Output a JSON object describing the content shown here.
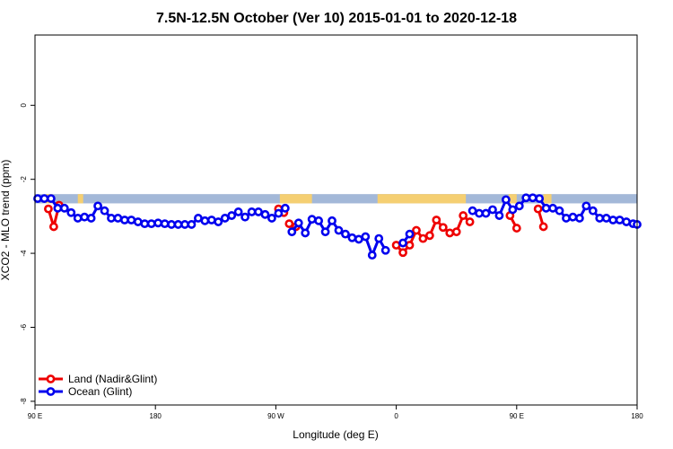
{
  "chart_data": {
    "type": "line",
    "title": "7.5N-12.5N October (Ver 10)   2015-01-01 to 2020-12-18",
    "xlabel": "Longitude (deg E)",
    "ylabel": "XCO2 - MLO trend (ppm)",
    "xlim": [
      90,
      540
    ],
    "ylim": [
      -8.1,
      1.9
    ],
    "x_ticks": [
      {
        "value": 90,
        "label": "90 E"
      },
      {
        "value": 180,
        "label": "180"
      },
      {
        "value": 270,
        "label": "90 W"
      },
      {
        "value": 360,
        "label": "0"
      },
      {
        "value": 450,
        "label": "90 E"
      },
      {
        "value": 540,
        "label": "180"
      }
    ],
    "y_ticks": [
      {
        "value": 0,
        "label": "0"
      },
      {
        "value": -2,
        "label": "-2"
      },
      {
        "value": -4,
        "label": "-4"
      },
      {
        "value": -6,
        "label": "-6"
      },
      {
        "value": -8,
        "label": "-8"
      }
    ],
    "legend_position": "bottom-left",
    "land_ocean_band": {
      "y_top": -2.4,
      "y_bottom": -2.65,
      "ocean_color": "#a3b8d8",
      "land_color": "#f5cf72",
      "land_segments": [
        [
          98,
          103
        ],
        [
          122,
          126
        ],
        [
          273,
          297
        ],
        [
          346,
          412
        ],
        [
          444,
          450
        ],
        [
          470,
          476
        ]
      ]
    },
    "series": [
      {
        "name": "Land (Nadir&Glint)",
        "color": "#ee0000",
        "segments": [
          {
            "x": [
              100,
              104,
              108
            ],
            "y": [
              -2.8,
              -3.28,
              -2.7
            ]
          },
          {
            "x": [
              272,
              276
            ],
            "y": [
              -2.8,
              -2.9
            ]
          },
          {
            "x": [
              280,
              285
            ],
            "y": [
              -3.2,
              -3.28
            ]
          },
          {
            "x": [
              360,
              365,
              370,
              375,
              380,
              385,
              390,
              395,
              400,
              405,
              410,
              415
            ],
            "y": [
              -3.78,
              -3.98,
              -3.78,
              -3.38,
              -3.6,
              -3.52,
              -3.1,
              -3.3,
              -3.45,
              -3.42,
              -2.98,
              -3.15
            ]
          },
          {
            "x": [
              445,
              450
            ],
            "y": [
              -2.98,
              -3.32
            ]
          },
          {
            "x": [
              466,
              470
            ],
            "y": [
              -2.8,
              -3.28
            ]
          }
        ]
      },
      {
        "name": "Ocean (Glint)",
        "color": "#0000ee",
        "segments": [
          {
            "x": [
              92,
              97,
              102,
              107,
              112,
              117,
              122,
              127,
              132,
              137,
              142,
              147,
              152,
              157,
              162,
              167,
              172,
              177,
              182,
              187,
              192,
              197,
              202,
              207,
              212,
              217,
              222,
              227,
              232,
              237,
              242,
              247,
              252,
              257,
              262,
              267,
              272,
              277
            ],
            "y": [
              -2.52,
              -2.52,
              -2.52,
              -2.78,
              -2.78,
              -2.9,
              -3.05,
              -3.02,
              -3.05,
              -2.72,
              -2.85,
              -3.05,
              -3.05,
              -3.1,
              -3.1,
              -3.15,
              -3.2,
              -3.2,
              -3.18,
              -3.2,
              -3.22,
              -3.22,
              -3.22,
              -3.22,
              -3.05,
              -3.12,
              -3.1,
              -3.15,
              -3.05,
              -2.98,
              -2.88,
              -3.02,
              -2.88,
              -2.88,
              -2.95,
              -3.05,
              -2.92,
              -2.78
            ]
          },
          {
            "x": [
              282,
              287,
              292,
              297,
              302,
              307,
              312,
              317,
              322,
              327,
              332,
              337,
              342,
              347,
              352
            ],
            "y": [
              -3.42,
              -3.18,
              -3.45,
              -3.08,
              -3.12,
              -3.42,
              -3.12,
              -3.38,
              -3.48,
              -3.58,
              -3.62,
              -3.55,
              -4.05,
              -3.6,
              -3.92
            ]
          },
          {
            "x": [
              365,
              370
            ],
            "y": [
              -3.72,
              -3.48
            ]
          },
          {
            "x": [
              417,
              422,
              427,
              432,
              437,
              442,
              447,
              452,
              457,
              462,
              467,
              472,
              477,
              482,
              487,
              492,
              497,
              502,
              507,
              512,
              517,
              522,
              527,
              532,
              537,
              540
            ],
            "y": [
              -2.85,
              -2.92,
              -2.92,
              -2.82,
              -2.98,
              -2.55,
              -2.82,
              -2.72,
              -2.5,
              -2.5,
              -2.52,
              -2.78,
              -2.78,
              -2.85,
              -3.05,
              -3.02,
              -3.05,
              -2.72,
              -2.85,
              -3.05,
              -3.05,
              -3.1,
              -3.1,
              -3.15,
              -3.2,
              -3.22
            ]
          }
        ]
      }
    ]
  }
}
